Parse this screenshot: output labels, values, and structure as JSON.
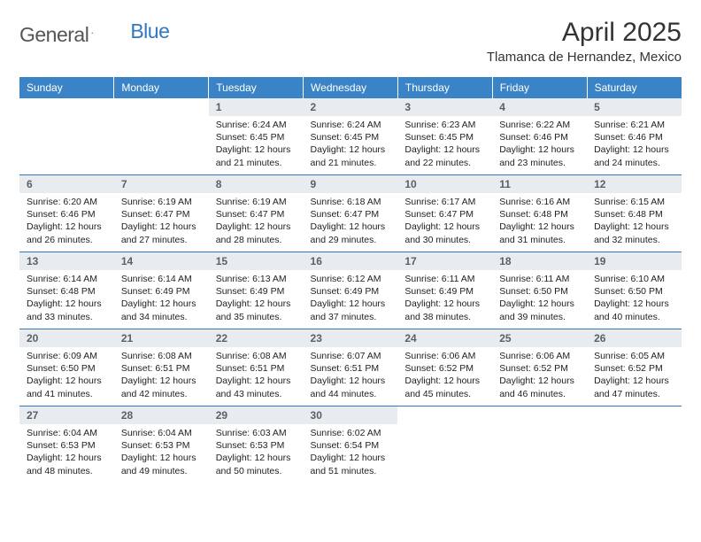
{
  "brand": {
    "part1": "General",
    "part2": "Blue"
  },
  "title": "April 2025",
  "location": "Tlamanca de Hernandez, Mexico",
  "colors": {
    "header_bg": "#3b83c7",
    "header_text": "#ffffff",
    "daynum_bg": "#e9ecef",
    "daynum_text": "#5a6069",
    "row_border": "#2f78c2",
    "brand_blue": "#2f78c2",
    "brand_gray": "#555555",
    "body_text": "#222222",
    "page_bg": "#ffffff"
  },
  "weekdays": [
    "Sunday",
    "Monday",
    "Tuesday",
    "Wednesday",
    "Thursday",
    "Friday",
    "Saturday"
  ],
  "first_weekday_index": 2,
  "days": [
    {
      "n": 1,
      "sunrise": "6:24 AM",
      "sunset": "6:45 PM",
      "dl": "12 hours and 21 minutes."
    },
    {
      "n": 2,
      "sunrise": "6:24 AM",
      "sunset": "6:45 PM",
      "dl": "12 hours and 21 minutes."
    },
    {
      "n": 3,
      "sunrise": "6:23 AM",
      "sunset": "6:45 PM",
      "dl": "12 hours and 22 minutes."
    },
    {
      "n": 4,
      "sunrise": "6:22 AM",
      "sunset": "6:46 PM",
      "dl": "12 hours and 23 minutes."
    },
    {
      "n": 5,
      "sunrise": "6:21 AM",
      "sunset": "6:46 PM",
      "dl": "12 hours and 24 minutes."
    },
    {
      "n": 6,
      "sunrise": "6:20 AM",
      "sunset": "6:46 PM",
      "dl": "12 hours and 26 minutes."
    },
    {
      "n": 7,
      "sunrise": "6:19 AM",
      "sunset": "6:47 PM",
      "dl": "12 hours and 27 minutes."
    },
    {
      "n": 8,
      "sunrise": "6:19 AM",
      "sunset": "6:47 PM",
      "dl": "12 hours and 28 minutes."
    },
    {
      "n": 9,
      "sunrise": "6:18 AM",
      "sunset": "6:47 PM",
      "dl": "12 hours and 29 minutes."
    },
    {
      "n": 10,
      "sunrise": "6:17 AM",
      "sunset": "6:47 PM",
      "dl": "12 hours and 30 minutes."
    },
    {
      "n": 11,
      "sunrise": "6:16 AM",
      "sunset": "6:48 PM",
      "dl": "12 hours and 31 minutes."
    },
    {
      "n": 12,
      "sunrise": "6:15 AM",
      "sunset": "6:48 PM",
      "dl": "12 hours and 32 minutes."
    },
    {
      "n": 13,
      "sunrise": "6:14 AM",
      "sunset": "6:48 PM",
      "dl": "12 hours and 33 minutes."
    },
    {
      "n": 14,
      "sunrise": "6:14 AM",
      "sunset": "6:49 PM",
      "dl": "12 hours and 34 minutes."
    },
    {
      "n": 15,
      "sunrise": "6:13 AM",
      "sunset": "6:49 PM",
      "dl": "12 hours and 35 minutes."
    },
    {
      "n": 16,
      "sunrise": "6:12 AM",
      "sunset": "6:49 PM",
      "dl": "12 hours and 37 minutes."
    },
    {
      "n": 17,
      "sunrise": "6:11 AM",
      "sunset": "6:49 PM",
      "dl": "12 hours and 38 minutes."
    },
    {
      "n": 18,
      "sunrise": "6:11 AM",
      "sunset": "6:50 PM",
      "dl": "12 hours and 39 minutes."
    },
    {
      "n": 19,
      "sunrise": "6:10 AM",
      "sunset": "6:50 PM",
      "dl": "12 hours and 40 minutes."
    },
    {
      "n": 20,
      "sunrise": "6:09 AM",
      "sunset": "6:50 PM",
      "dl": "12 hours and 41 minutes."
    },
    {
      "n": 21,
      "sunrise": "6:08 AM",
      "sunset": "6:51 PM",
      "dl": "12 hours and 42 minutes."
    },
    {
      "n": 22,
      "sunrise": "6:08 AM",
      "sunset": "6:51 PM",
      "dl": "12 hours and 43 minutes."
    },
    {
      "n": 23,
      "sunrise": "6:07 AM",
      "sunset": "6:51 PM",
      "dl": "12 hours and 44 minutes."
    },
    {
      "n": 24,
      "sunrise": "6:06 AM",
      "sunset": "6:52 PM",
      "dl": "12 hours and 45 minutes."
    },
    {
      "n": 25,
      "sunrise": "6:06 AM",
      "sunset": "6:52 PM",
      "dl": "12 hours and 46 minutes."
    },
    {
      "n": 26,
      "sunrise": "6:05 AM",
      "sunset": "6:52 PM",
      "dl": "12 hours and 47 minutes."
    },
    {
      "n": 27,
      "sunrise": "6:04 AM",
      "sunset": "6:53 PM",
      "dl": "12 hours and 48 minutes."
    },
    {
      "n": 28,
      "sunrise": "6:04 AM",
      "sunset": "6:53 PM",
      "dl": "12 hours and 49 minutes."
    },
    {
      "n": 29,
      "sunrise": "6:03 AM",
      "sunset": "6:53 PM",
      "dl": "12 hours and 50 minutes."
    },
    {
      "n": 30,
      "sunrise": "6:02 AM",
      "sunset": "6:54 PM",
      "dl": "12 hours and 51 minutes."
    }
  ],
  "labels": {
    "sunrise": "Sunrise: ",
    "sunset": "Sunset: ",
    "daylight": "Daylight: "
  }
}
